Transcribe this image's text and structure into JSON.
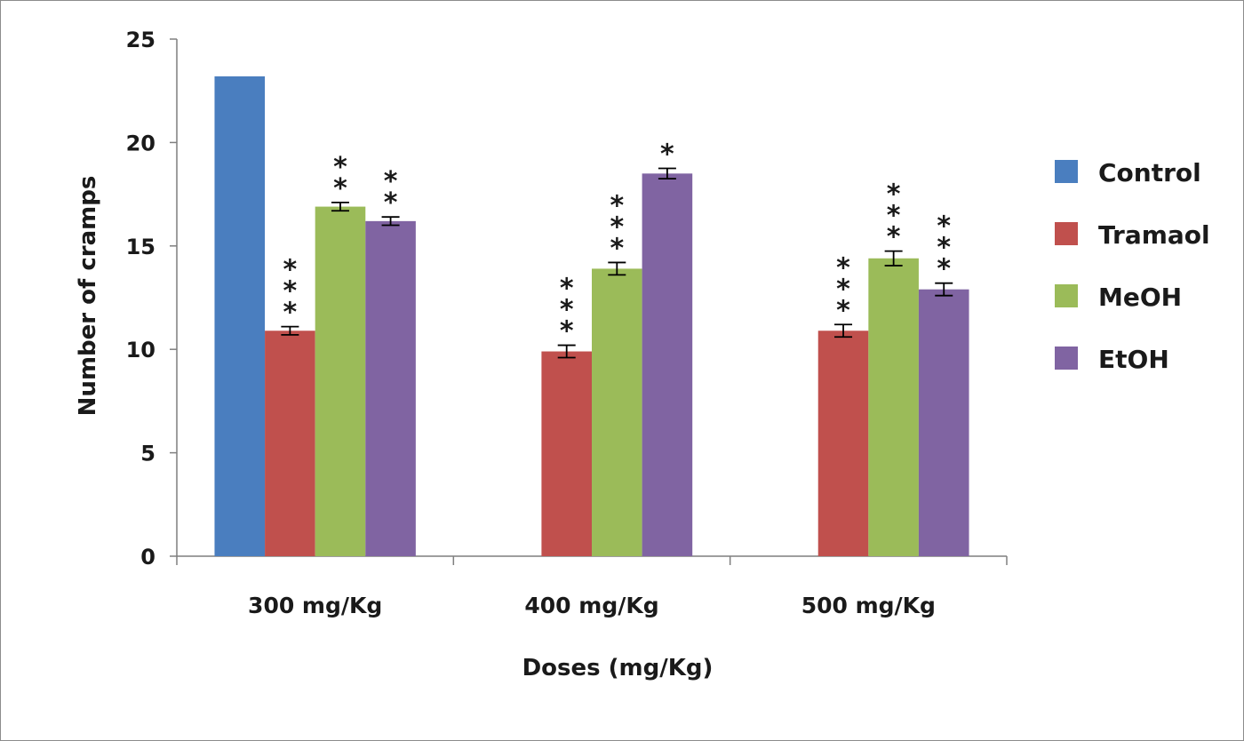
{
  "chart_data": {
    "type": "bar",
    "title": "",
    "xlabel": "Doses (mg/Kg)",
    "ylabel": "Number of cramps",
    "ylim": [
      0,
      25
    ],
    "yticks": [
      "0",
      "5",
      "10",
      "15",
      "20",
      "25"
    ],
    "categories": [
      "300 mg/Kg",
      "400 mg/Kg",
      "500 mg/Kg"
    ],
    "legend_position": "right",
    "grid": false,
    "series": [
      {
        "name": "Control",
        "color": "#4a7ebf",
        "values": [
          23.2,
          null,
          null
        ],
        "errors": [
          null,
          null,
          null
        ],
        "significance": [
          "",
          "",
          ""
        ]
      },
      {
        "name": "Tramaol",
        "color": "#c0504d",
        "values": [
          10.9,
          9.9,
          10.9
        ],
        "errors": [
          0.2,
          0.3,
          0.3
        ],
        "significance": [
          "***",
          "***",
          "***"
        ]
      },
      {
        "name": "MeOH",
        "color": "#9bbb59",
        "values": [
          16.9,
          13.9,
          14.4
        ],
        "errors": [
          0.2,
          0.3,
          0.35
        ],
        "significance": [
          "**",
          "***",
          "***"
        ]
      },
      {
        "name": "EtOH",
        "color": "#8064a2",
        "values": [
          16.2,
          18.5,
          12.9
        ],
        "errors": [
          0.2,
          0.25,
          0.3
        ],
        "significance": [
          "**",
          "*",
          "***"
        ]
      }
    ]
  }
}
